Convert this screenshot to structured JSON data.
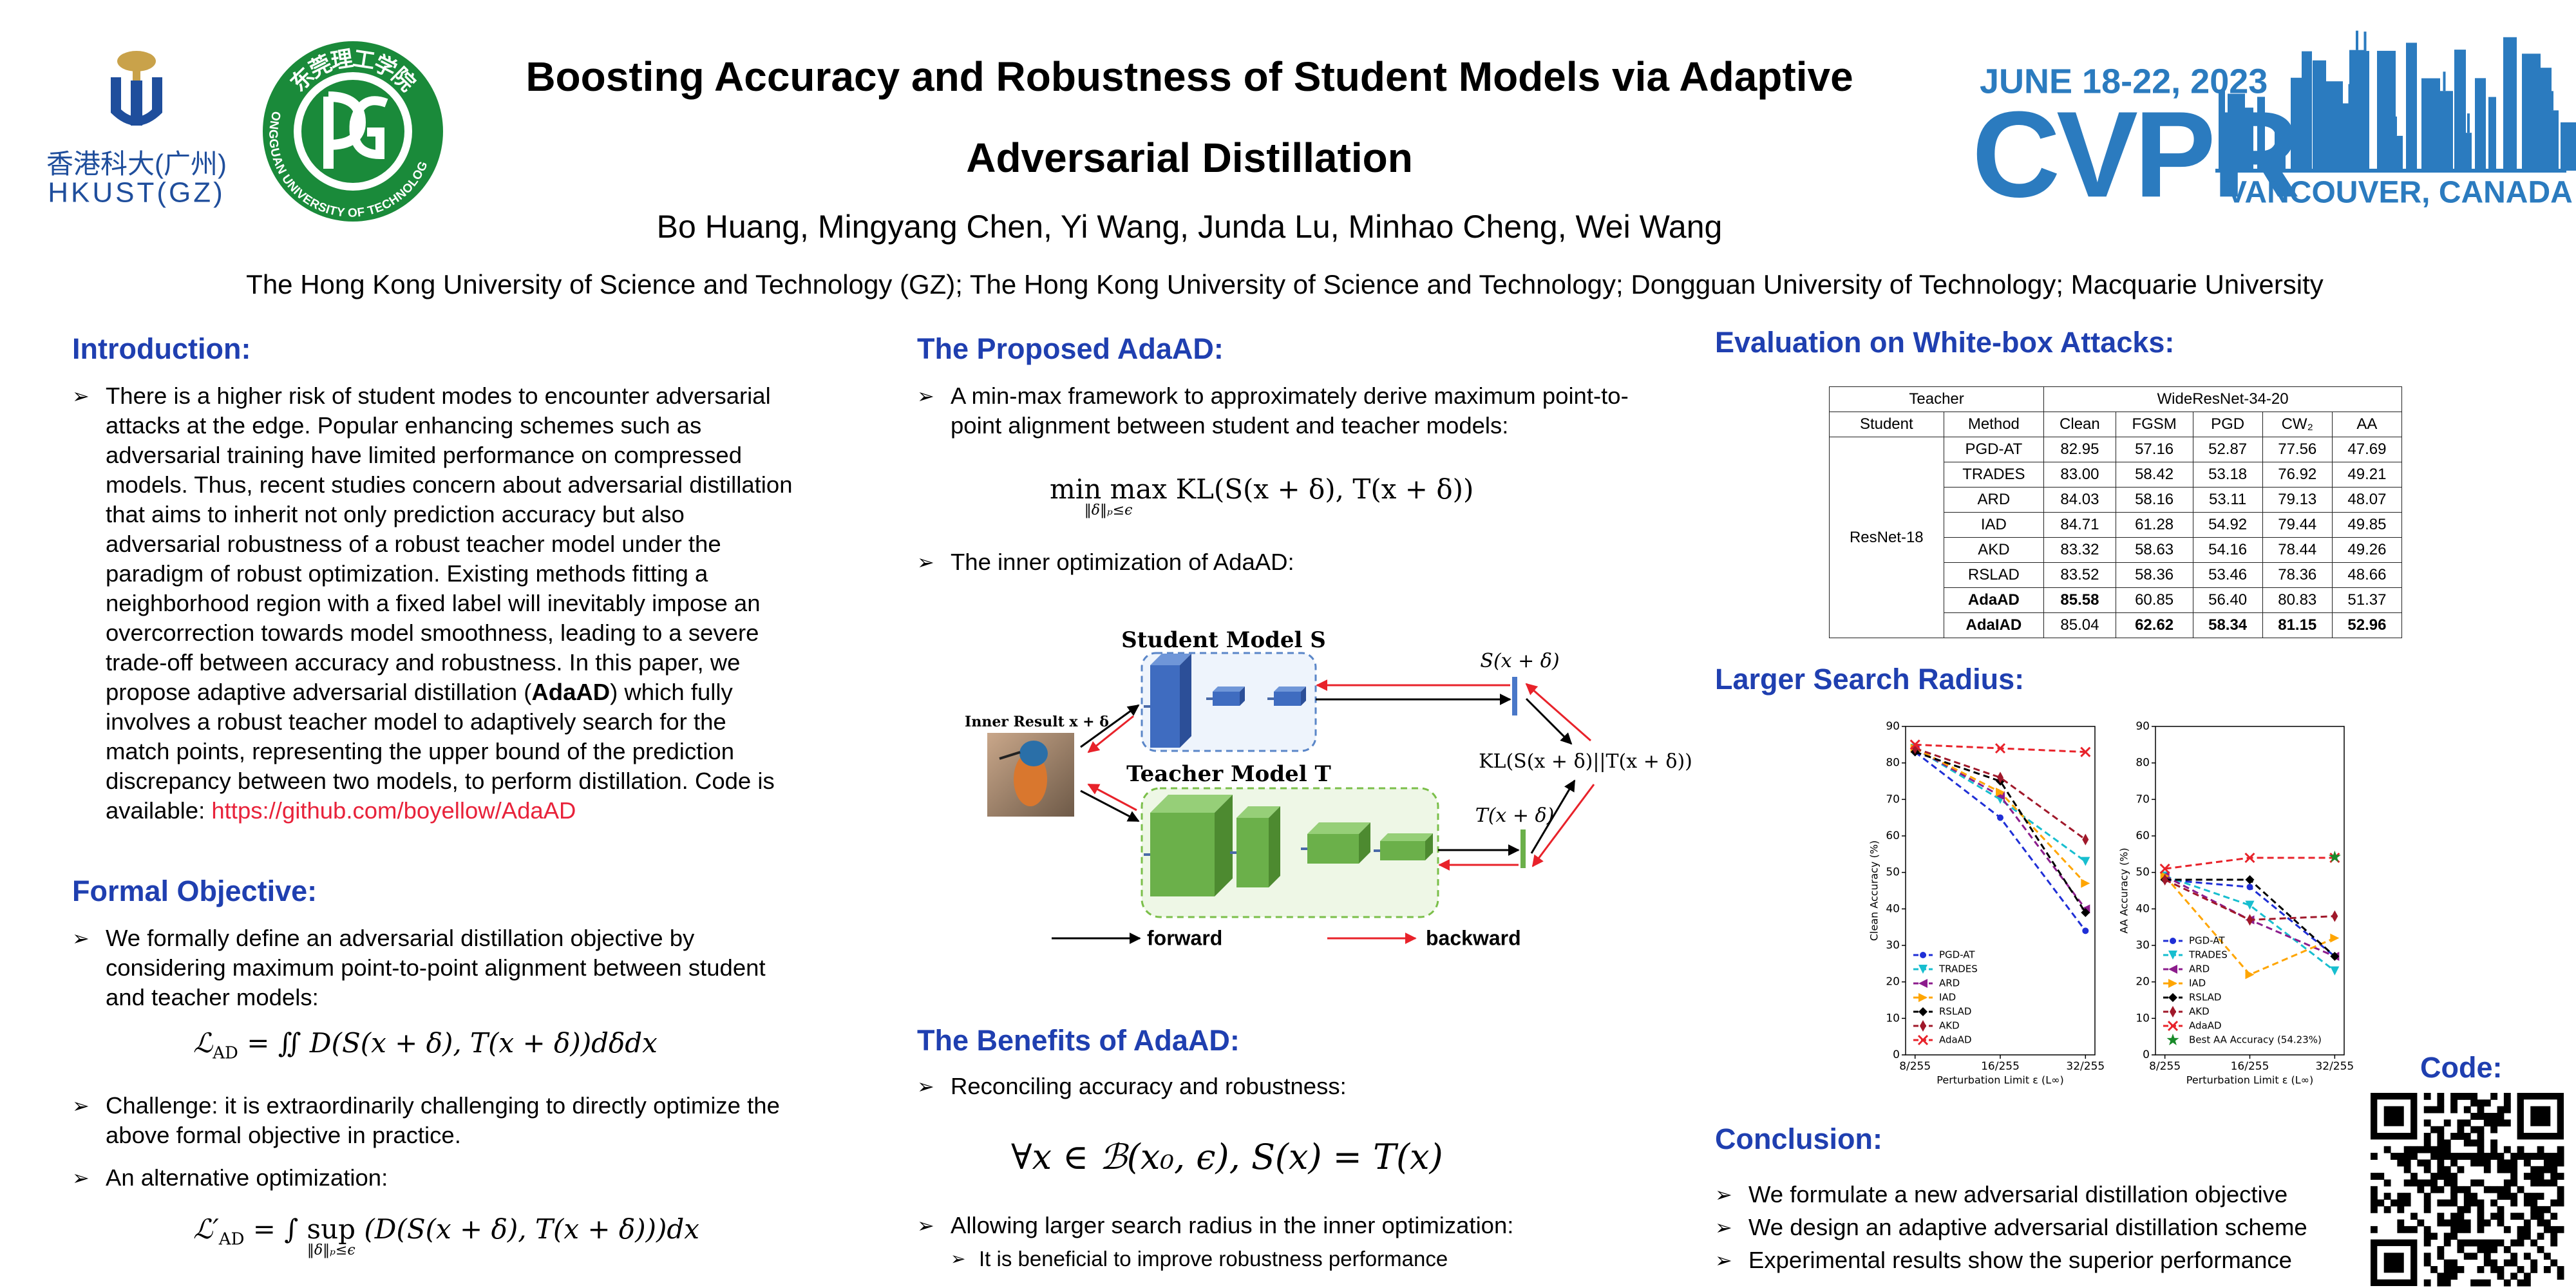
{
  "header": {
    "title": [
      "Boosting Accuracy and Robustness of Student Models via Adaptive",
      "Adversarial Distillation"
    ],
    "authors": "Bo Huang, Mingyang Chen,  Yi Wang, Junda Lu, Minhao Cheng, Wei Wang",
    "affiliations": "The Hong Kong University of Science and Technology (GZ); The Hong Kong University of Science and Technology; Dongguan University of Technology; Macquarie University",
    "logos": {
      "hkust_cn": "香港科大(广州)",
      "hkust_en": "HKUST(GZ)",
      "dgut_cn": "东莞理工学院",
      "dgut_en": "DONGGUAN UNIVERSITY OF TECHNOLOGY"
    },
    "conference": {
      "dates": "JUNE 18-22, 2023",
      "name": "CVPR",
      "location": "VANCOUVER, CANADA"
    }
  },
  "introduction": {
    "heading": "Introduction:",
    "bullets": [
      {
        "text": "There is a higher risk of student modes to encounter adversarial attacks at the edge. Popular enhancing schemes such as adversarial training have limited performance on compressed models. Thus, recent studies concern about adversarial distillation that aims to inherit not only prediction accuracy but also adversarial robustness of a robust teacher model under the paradigm of robust optimization. Existing methods  fitting a neighborhood region with a fixed label will inevitably impose an overcorrection towards model smoothness, leading to a severe trade-off between accuracy and robustness. In this paper, we propose adaptive adversarial distillation (",
        "bold": "AdaAD",
        "text_after": ") which fully involves a robust teacher model to adaptively search for the match points,  representing the upper bound of the prediction discrepancy between two models, to perform distillation. Code is available: ",
        "link": "https://github.com/boyellow/AdaAD"
      }
    ]
  },
  "formal_objective": {
    "heading": "Formal Objective:",
    "bullets": [
      "We formally define an adversarial distillation objective by considering maximum point-to-point alignment between student and teacher models:",
      "Challenge: it is extraordinarily challenging to directly optimize the above formal objective in practice.",
      "An alternative optimization:"
    ],
    "formula_1": {
      "lhs": "ℒ",
      "sub": "AD",
      "rhs": " = ∬ D(S(x + δ), T(x + δ))dδdx"
    },
    "formula_2": {
      "lhs": "ℒ′",
      "sub": "AD",
      "pre": " = ∫ ",
      "op": "sup",
      "op_sub": "‖δ‖ₚ≤ϵ",
      "body": " (D(S(x + δ), T(x + δ)))dx"
    }
  },
  "proposed": {
    "heading": "The Proposed AdaAD:",
    "bullets": [
      "A min-max framework to approximately derive maximum point-to-point alignment between student and teacher models:",
      "The inner optimization of AdaAD:"
    ],
    "formula": {
      "op1": "min",
      "op2": "max",
      "op_sub": "‖δ‖ₚ≤ϵ",
      "body": "KL(S(x + δ), T(x + δ))"
    },
    "diagram": {
      "student": "Student Model S",
      "teacher": "Teacher Model T",
      "inner": "Inner Result x + δ",
      "s_out": "S(x + δ)",
      "t_out": "T(x + δ)",
      "kl": "KL(S(x + δ)||T(x + δ))",
      "forward": "forward",
      "backward": "backward"
    }
  },
  "benefits": {
    "heading": "The Benefits of AdaAD:",
    "bullets": [
      "Reconciling accuracy and robustness:",
      "Allowing larger search radius in the inner optimization:"
    ],
    "formula": "∀x ∈ ℬ(x₀, ϵ), S(x) = T(x)",
    "sub_bullets": [
      "It is beneficial to improve robustness performance"
    ]
  },
  "evaluation": {
    "heading": "Evaluation on White-box Attacks:",
    "table": {
      "header": [
        "Teacher",
        "WideResNet-34-20"
      ],
      "subheader": [
        "Student",
        "Method",
        "Clean",
        "FGSM",
        "PGD",
        "CW₂",
        "AA"
      ],
      "student": "ResNet-18",
      "rows": [
        {
          "cells": [
            "PGD-AT",
            "82.95",
            "57.16",
            "52.87",
            "77.56",
            "47.69"
          ],
          "bold": [
            false,
            false,
            false,
            false,
            false,
            false
          ]
        },
        {
          "cells": [
            "TRADES",
            "83.00",
            "58.42",
            "53.18",
            "76.92",
            "49.21"
          ],
          "bold": [
            false,
            false,
            false,
            false,
            false,
            false
          ]
        },
        {
          "cells": [
            "ARD",
            "84.03",
            "58.16",
            "53.11",
            "79.13",
            "48.07"
          ],
          "bold": [
            false,
            false,
            false,
            false,
            false,
            false
          ]
        },
        {
          "cells": [
            "IAD",
            "84.71",
            "61.28",
            "54.92",
            "79.44",
            "49.85"
          ],
          "bold": [
            false,
            false,
            false,
            false,
            false,
            false
          ]
        },
        {
          "cells": [
            "AKD",
            "83.32",
            "58.63",
            "54.16",
            "78.44",
            "49.26"
          ],
          "bold": [
            false,
            false,
            false,
            false,
            false,
            false
          ]
        },
        {
          "cells": [
            "RSLAD",
            "83.52",
            "58.36",
            "53.46",
            "78.36",
            "48.66"
          ],
          "bold": [
            false,
            false,
            false,
            false,
            false,
            false
          ]
        },
        {
          "cells": [
            "AdaAD",
            "85.58",
            "60.85",
            "56.40",
            "80.83",
            "51.37"
          ],
          "bold": [
            true,
            true,
            false,
            false,
            false,
            false
          ]
        },
        {
          "cells": [
            "AdaIAD",
            "85.04",
            "62.62",
            "58.34",
            "81.15",
            "52.96"
          ],
          "bold": [
            true,
            false,
            true,
            true,
            true,
            true
          ]
        }
      ]
    }
  },
  "search_radius": {
    "heading": "Larger Search Radius:",
    "charts": [
      {
        "type": "line",
        "ylabel": "Clean Accuracy (%)",
        "xlabel": "Perturbation Limit ε (L∞)",
        "categories": [
          "8/255",
          "16/255",
          "32/255"
        ],
        "ylim": [
          0,
          90
        ],
        "yticks": [
          0,
          10,
          20,
          30,
          40,
          50,
          60,
          70,
          80,
          90
        ],
        "legend": "lower left",
        "series": [
          {
            "name": "PGD-AT",
            "color": "#1f2fd6",
            "marker": "o",
            "values": [
              83,
              65,
              34
            ]
          },
          {
            "name": "TRADES",
            "color": "#17becf",
            "marker": "v",
            "values": [
              84,
              70,
              53
            ]
          },
          {
            "name": "ARD",
            "color": "#8c1c8c",
            "marker": "<",
            "values": [
              84,
              71,
              40
            ]
          },
          {
            "name": "IAD",
            "color": "#ffa500",
            "marker": ">",
            "values": [
              84,
              72,
              47
            ]
          },
          {
            "name": "RSLAD",
            "color": "#000000",
            "marker": "D",
            "values": [
              83,
              75,
              39
            ]
          },
          {
            "name": "AKD",
            "color": "#a0182a",
            "marker": "d",
            "values": [
              84,
              76,
              59
            ]
          },
          {
            "name": "AdaAD",
            "color": "#e8222a",
            "marker": "x",
            "values": [
              85,
              84,
              83
            ]
          }
        ]
      },
      {
        "type": "line",
        "ylabel": "AA Accuracy (%)",
        "xlabel": "Perturbation Limit ε (L∞)",
        "categories": [
          "8/255",
          "16/255",
          "32/255"
        ],
        "ylim": [
          0,
          90
        ],
        "yticks": [
          0,
          10,
          20,
          30,
          40,
          50,
          60,
          70,
          80,
          90
        ],
        "legend": "lower left",
        "series": [
          {
            "name": "PGD-AT",
            "color": "#1f2fd6",
            "marker": "o",
            "values": [
              48,
              46,
              27
            ]
          },
          {
            "name": "TRADES",
            "color": "#17becf",
            "marker": "v",
            "values": [
              49,
              41,
              23
            ]
          },
          {
            "name": "ARD",
            "color": "#8c1c8c",
            "marker": "<",
            "values": [
              49,
              37,
              27
            ]
          },
          {
            "name": "IAD",
            "color": "#ffa500",
            "marker": ">",
            "values": [
              49,
              22,
              32
            ]
          },
          {
            "name": "RSLAD",
            "color": "#000000",
            "marker": "D",
            "values": [
              48,
              48,
              27
            ]
          },
          {
            "name": "AKD",
            "color": "#a0182a",
            "marker": "d",
            "values": [
              48,
              37,
              38
            ]
          },
          {
            "name": "AdaAD",
            "color": "#e8222a",
            "marker": "x",
            "values": [
              51,
              54,
              54
            ]
          },
          {
            "name": "Best AA Accuracy (54.23%)",
            "color": "#1a8a2a",
            "marker": "*",
            "values": [
              null,
              null,
              54.23
            ]
          }
        ]
      }
    ]
  },
  "conclusion": {
    "heading": "Conclusion:",
    "bullets": [
      "We formulate a new adversarial distillation objective",
      "We design an adaptive adversarial distillation scheme",
      "Experimental results show the superior performance"
    ]
  },
  "code": {
    "label": "Code:"
  }
}
